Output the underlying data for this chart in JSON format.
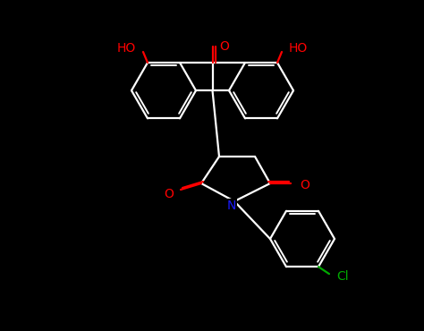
{
  "bg": "#000000",
  "bc": "#ffffff",
  "rc": "#ff0000",
  "nc": "#1a1aff",
  "clc": "#00aa00",
  "lw": 1.6,
  "lw_inner": 1.4,
  "fs": 10
}
